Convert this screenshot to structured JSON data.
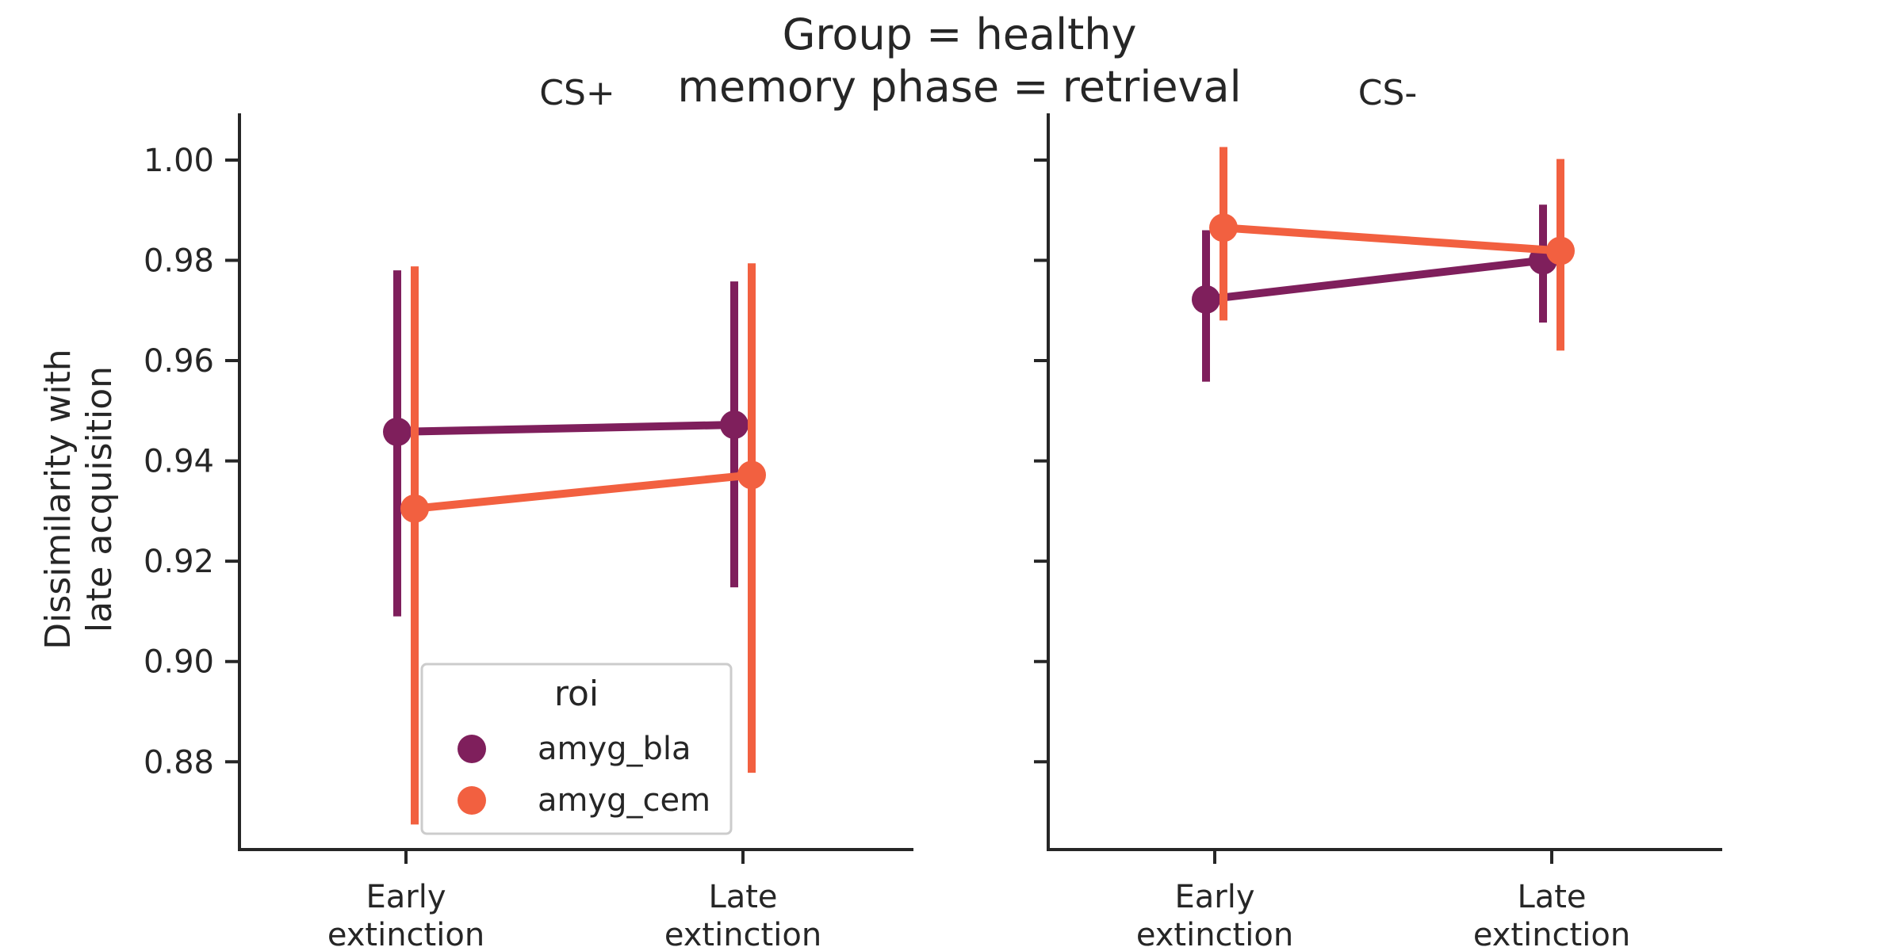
{
  "figure": {
    "suptitle_line1": "Group = healthy",
    "suptitle_line2": "memory phase = retrieval"
  },
  "chart_data": {
    "type": "line",
    "ylabel": [
      "Dissimilarity with",
      "late acquisition"
    ],
    "ylim": [
      0.8625,
      1.009
    ],
    "yticks": [
      0.88,
      0.9,
      0.92,
      0.94,
      0.96,
      0.98,
      1.0
    ],
    "ytick_labels": [
      "0.88",
      "0.90",
      "0.92",
      "0.94",
      "0.96",
      "0.98",
      "1.00"
    ],
    "categories": [
      [
        "Early",
        "extinction"
      ],
      [
        "Late",
        "extinction"
      ]
    ],
    "grid": false,
    "colors": {
      "amyg_bla": "#7f1f5c",
      "amyg_cem": "#f26040",
      "axis": "#262626"
    },
    "legend": {
      "title": "roi",
      "placement": "lower-center",
      "entries": [
        "amyg_bla",
        "amyg_cem"
      ]
    },
    "panels": [
      {
        "title": "CS+",
        "series": [
          {
            "name": "amyg_bla",
            "values": [
              0.9458,
              0.9472
            ],
            "ci_low": [
              0.909,
              0.9148
            ],
            "ci_high": [
              0.978,
              0.9758
            ]
          },
          {
            "name": "amyg_cem",
            "values": [
              0.9305,
              0.9372
            ],
            "ci_low": [
              0.8675,
              0.8778
            ],
            "ci_high": [
              0.9788,
              0.9794
            ]
          }
        ]
      },
      {
        "title": "CS-",
        "series": [
          {
            "name": "amyg_bla",
            "values": [
              0.9722,
              0.98
            ],
            "ci_low": [
              0.9558,
              0.9676
            ],
            "ci_high": [
              0.986,
              0.9911
            ]
          },
          {
            "name": "amyg_cem",
            "values": [
              0.9865,
              0.9819
            ],
            "ci_low": [
              0.968,
              0.962
            ],
            "ci_high": [
              1.0026,
              1.0002
            ]
          }
        ]
      }
    ]
  }
}
